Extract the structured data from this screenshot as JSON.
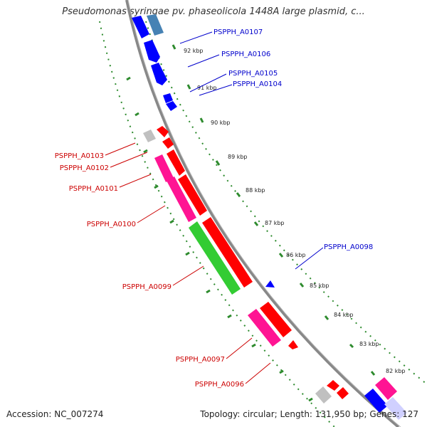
{
  "title": "Pseudomonas syringae pv. phaseolicola 1448A large plasmid, c...",
  "footer": {
    "accession": "Accession: NC_007274",
    "topology": "Topology: circular; Length: 131,950 bp; Genes: 127"
  },
  "colors": {
    "backbone": "#808080",
    "tick": "#2e8b2e",
    "blue_gene": "#0000ff",
    "steelblue_gene": "#4682b4",
    "red_gene": "#ff0000",
    "pink_gene": "#ff1493",
    "green_gene": "#33cc33",
    "grey_gene": "#c0c0c0",
    "forward_label": "#0000cc",
    "reverse_label": "#cc0000"
  },
  "scale_labels": [
    "92 kbp",
    "91 kbp",
    "90 kbp",
    "89 kbp",
    "88 kbp",
    "87 kbp",
    "86 kbp",
    "85 kbp",
    "84 kbp",
    "83 kbp",
    "82 kbp"
  ],
  "forward_gene_labels": [
    "PSPPH_A0107",
    "PSPPH_A0106",
    "PSPPH_A0105",
    "PSPPH_A0104",
    "PSPPH_A0098"
  ],
  "reverse_gene_labels": [
    "PSPPH_A0103",
    "PSPPH_A0102",
    "PSPPH_A0101",
    "PSPPH_A0100",
    "PSPPH_A0099",
    "PSPPH_A0097",
    "PSPPH_A0096"
  ]
}
